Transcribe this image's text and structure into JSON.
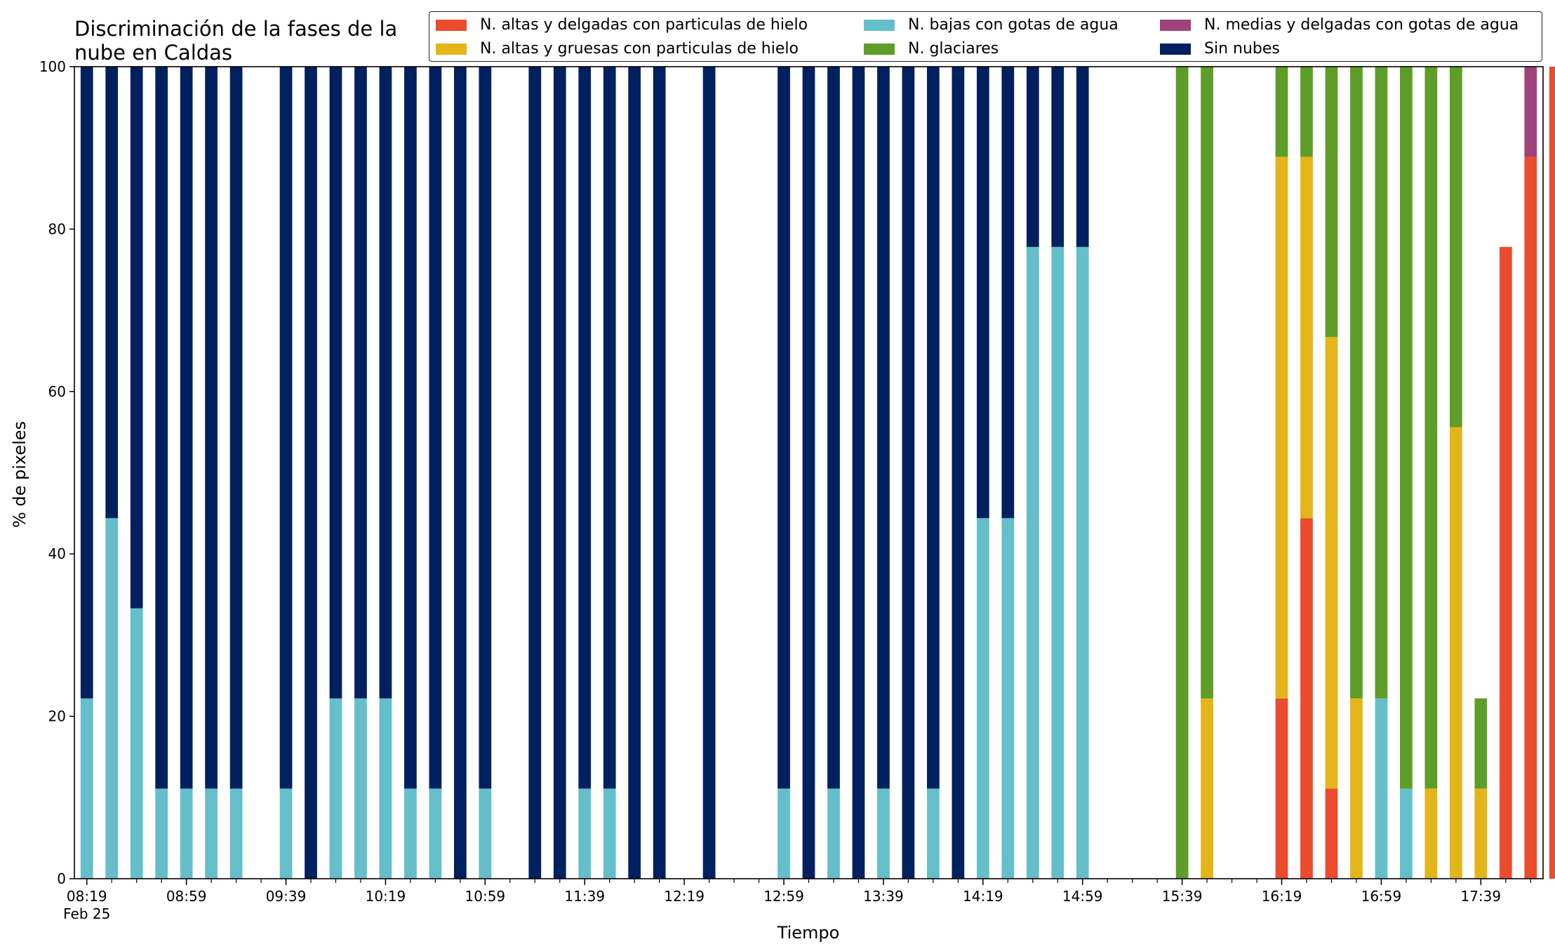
{
  "chart_data": {
    "type": "bar",
    "stacked": true,
    "title_lines": [
      "Discriminación de la fases de la",
      "nube en Caldas"
    ],
    "xlabel": "Tiempo",
    "ylabel": "% de pixeles",
    "ylim": [
      0,
      100
    ],
    "yticks": [
      0,
      20,
      40,
      60,
      80,
      100
    ],
    "xlim_index": [
      -0.5,
      58.5
    ],
    "x_tick_labels": [
      {
        "index": 0,
        "label": "08:19",
        "sublabel": "Feb 25"
      },
      {
        "index": 4,
        "label": "08:59"
      },
      {
        "index": 8,
        "label": "09:39"
      },
      {
        "index": 12,
        "label": "10:19"
      },
      {
        "index": 16,
        "label": "10:59"
      },
      {
        "index": 20,
        "label": "11:39"
      },
      {
        "index": 24,
        "label": "12:19"
      },
      {
        "index": 28,
        "label": "12:59"
      },
      {
        "index": 32,
        "label": "13:39"
      },
      {
        "index": 36,
        "label": "14:19"
      },
      {
        "index": 40,
        "label": "14:59"
      },
      {
        "index": 44,
        "label": "15:39"
      },
      {
        "index": 48,
        "label": "16:19"
      },
      {
        "index": 52,
        "label": "16:59"
      },
      {
        "index": 56,
        "label": "17:39"
      }
    ],
    "series": [
      {
        "name": "N. altas y delgadas con particulas de hielo",
        "color": "#EC4B2D",
        "values": [
          0,
          0,
          0,
          0,
          0,
          0,
          0,
          0,
          0,
          0,
          0,
          0,
          0,
          0,
          0,
          0,
          0,
          0,
          0,
          0,
          0,
          0,
          0,
          0,
          0,
          0,
          0,
          0,
          0,
          0,
          0,
          0,
          0,
          0,
          0,
          0,
          0,
          0,
          0,
          0,
          0,
          0,
          0,
          0,
          0,
          0,
          0,
          0,
          22.2,
          44.4,
          11.1,
          0,
          0,
          0,
          0,
          0,
          0,
          77.8,
          88.9,
          100
        ]
      },
      {
        "name": "N. altas y gruesas con particulas de hielo",
        "color": "#E4B518",
        "values": [
          0,
          0,
          0,
          0,
          0,
          0,
          0,
          0,
          0,
          0,
          0,
          0,
          0,
          0,
          0,
          0,
          0,
          0,
          0,
          0,
          0,
          0,
          0,
          0,
          0,
          0,
          0,
          0,
          0,
          0,
          0,
          0,
          0,
          0,
          0,
          0,
          0,
          0,
          0,
          0,
          0,
          0,
          0,
          0,
          0,
          22.2,
          0,
          0,
          66.7,
          44.5,
          55.6,
          22.2,
          0,
          0,
          11.1,
          55.6,
          11.1,
          0,
          0,
          0
        ]
      },
      {
        "name": "N. bajas con gotas de agua",
        "color": "#64BFCA",
        "values": [
          22.2,
          44.4,
          33.3,
          11.1,
          11.1,
          11.1,
          11.1,
          0,
          11.1,
          0,
          22.2,
          22.2,
          22.2,
          11.1,
          11.1,
          0,
          11.1,
          0,
          0,
          0,
          11.1,
          11.1,
          0,
          0,
          0,
          0,
          0,
          0,
          11.1,
          0,
          11.1,
          0,
          11.1,
          0,
          11.1,
          0,
          44.4,
          44.4,
          77.8,
          77.8,
          77.8,
          0,
          0,
          0,
          0,
          0,
          0,
          0,
          0,
          0,
          0,
          0,
          22.2,
          11.1,
          0,
          0,
          0,
          0,
          0,
          0
        ]
      },
      {
        "name": "N. glaciares",
        "color": "#5E9E28",
        "values": [
          0,
          0,
          0,
          0,
          0,
          0,
          0,
          0,
          0,
          0,
          0,
          0,
          0,
          0,
          0,
          0,
          0,
          0,
          0,
          0,
          0,
          0,
          0,
          0,
          0,
          0,
          0,
          0,
          0,
          0,
          0,
          0,
          0,
          0,
          0,
          0,
          0,
          0,
          0,
          0,
          0,
          0,
          0,
          0,
          100,
          77.8,
          0,
          0,
          11.1,
          11.1,
          33.3,
          77.8,
          77.8,
          88.9,
          88.9,
          44.4,
          11.1,
          0,
          0,
          0
        ]
      },
      {
        "name": "N. medias y delgadas con gotas de agua",
        "color": "#A0427A",
        "values": [
          0,
          0,
          0,
          0,
          0,
          0,
          0,
          0,
          0,
          0,
          0,
          0,
          0,
          0,
          0,
          0,
          0,
          0,
          0,
          0,
          0,
          0,
          0,
          0,
          0,
          0,
          0,
          0,
          0,
          0,
          0,
          0,
          0,
          0,
          0,
          0,
          0,
          0,
          0,
          0,
          0,
          0,
          0,
          0,
          0,
          0,
          0,
          0,
          0,
          0,
          0,
          0,
          0,
          0,
          0,
          0,
          0,
          0,
          11.1,
          0
        ]
      },
      {
        "name": "Sin nubes",
        "color": "#01205F",
        "values": [
          77.8,
          55.6,
          66.7,
          88.9,
          88.9,
          88.9,
          88.9,
          0,
          88.9,
          100,
          77.8,
          77.8,
          77.8,
          88.9,
          88.9,
          100,
          88.9,
          0,
          100,
          100,
          88.9,
          88.9,
          100,
          100,
          0,
          100,
          0,
          0,
          88.9,
          100,
          88.9,
          100,
          88.9,
          100,
          88.9,
          100,
          55.6,
          55.6,
          22.2,
          22.2,
          22.2,
          0,
          0,
          0,
          0,
          0,
          0,
          0,
          0,
          0,
          0,
          0,
          0,
          0,
          0,
          0,
          0,
          0,
          0,
          0
        ]
      }
    ],
    "stack_order": [
      "N. altas y delgadas con particulas de hielo",
      "N. altas y gruesas con particulas de hielo",
      "N. medias y delgadas con gotas de agua",
      "N. bajas con gotas de agua",
      "N. glaciares",
      "Sin nubes"
    ],
    "legend": {
      "position": "top-right",
      "columns": 3,
      "entries": [
        "N. altas y delgadas con particulas de hielo",
        "N. altas y gruesas con particulas de hielo",
        "N. bajas con gotas de agua",
        "N. glaciares",
        "N. medias y delgadas con gotas de agua",
        "Sin nubes"
      ]
    },
    "grid": false
  }
}
